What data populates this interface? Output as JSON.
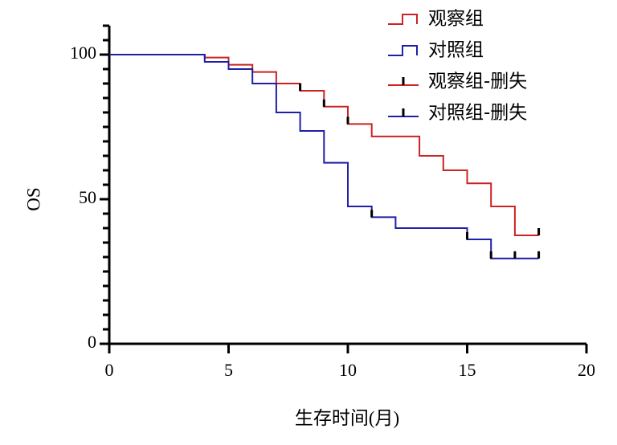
{
  "chart_data": {
    "type": "line",
    "subtype": "kaplan-meier",
    "title": "",
    "xlabel": "生存时间(月)",
    "ylabel": "OS",
    "xlim": [
      0,
      20
    ],
    "ylim": [
      0,
      100
    ],
    "x_ticks": [
      0,
      5,
      10,
      15,
      20
    ],
    "y_ticks": [
      0,
      50,
      100
    ],
    "grid": false,
    "legend_position": "top-right",
    "series": [
      {
        "name": "观察组",
        "color": "#cc2222",
        "steps": [
          [
            0,
            100
          ],
          [
            4,
            99
          ],
          [
            5,
            96.5
          ],
          [
            6,
            94
          ],
          [
            7,
            90
          ],
          [
            8,
            87.5
          ],
          [
            9,
            82
          ],
          [
            10,
            76
          ],
          [
            11,
            71.7
          ],
          [
            13,
            65
          ],
          [
            14,
            60
          ],
          [
            15,
            55.5
          ],
          [
            16,
            47.5
          ],
          [
            17,
            37.5
          ],
          [
            18,
            37.5
          ]
        ],
        "censored": [
          [
            8,
            87.5
          ],
          [
            9,
            82
          ],
          [
            10,
            76
          ],
          [
            18,
            37.5
          ]
        ]
      },
      {
        "name": "对照组",
        "color": "#1f1fa8",
        "steps": [
          [
            0,
            100
          ],
          [
            4,
            97.5
          ],
          [
            5,
            95
          ],
          [
            6,
            90
          ],
          [
            7,
            80
          ],
          [
            8,
            73.6
          ],
          [
            9,
            62.6
          ],
          [
            10,
            47.5
          ],
          [
            11,
            43.8
          ],
          [
            12,
            40
          ],
          [
            15,
            36.1
          ],
          [
            16,
            29.5
          ],
          [
            18,
            29.5
          ]
        ],
        "censored": [
          [
            11,
            43.8
          ],
          [
            15,
            36.1
          ],
          [
            16,
            29.5
          ],
          [
            17,
            29.5
          ],
          [
            18,
            29.5
          ]
        ]
      }
    ],
    "legend": [
      {
        "label": "观察组",
        "kind": "line",
        "color": "#cc2222"
      },
      {
        "label": "对照组",
        "kind": "line",
        "color": "#1f1fa8"
      },
      {
        "label": "观察组-删失",
        "kind": "censor",
        "color": "#cc2222"
      },
      {
        "label": "对照组-删失",
        "kind": "censor",
        "color": "#1f1fa8"
      }
    ]
  }
}
